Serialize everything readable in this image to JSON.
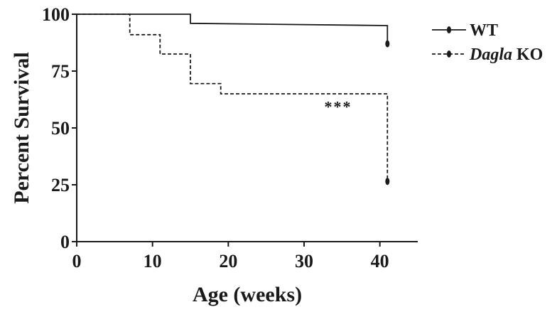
{
  "chart_data": {
    "type": "line",
    "title": "",
    "xlabel": "Age (weeks)",
    "ylabel": "Percent Survival",
    "xlim": [
      0,
      45
    ],
    "ylim": [
      0,
      100
    ],
    "xticks": [
      "0",
      "10",
      "20",
      "30",
      "40"
    ],
    "yticks": [
      "0",
      "25",
      "50",
      "75",
      "100"
    ],
    "legend_position": "top-right",
    "series": [
      {
        "name": "WT",
        "name_parts": [
          "WT"
        ],
        "style": "solid",
        "color": "#1a1a1a",
        "steps": [
          [
            0,
            100
          ],
          [
            15,
            100
          ],
          [
            15,
            96
          ],
          [
            41,
            95
          ],
          [
            41,
            87
          ]
        ],
        "censor": [
          [
            41,
            87
          ]
        ]
      },
      {
        "name": "Dagla KO",
        "name_parts": [
          "Dagla",
          " KO"
        ],
        "style": "dashed",
        "color": "#1a1a1a",
        "steps": [
          [
            0,
            100
          ],
          [
            7,
            100
          ],
          [
            7,
            91
          ],
          [
            11,
            91
          ],
          [
            11,
            82.5
          ],
          [
            15,
            82.5
          ],
          [
            15,
            69.5
          ],
          [
            19,
            69.5
          ],
          [
            19,
            65
          ],
          [
            41,
            65
          ],
          [
            41,
            26.5
          ]
        ],
        "censor": [
          [
            41,
            26.5
          ]
        ]
      }
    ],
    "annotations": [
      {
        "text": "***",
        "x": 34.5,
        "y": 57
      }
    ]
  }
}
